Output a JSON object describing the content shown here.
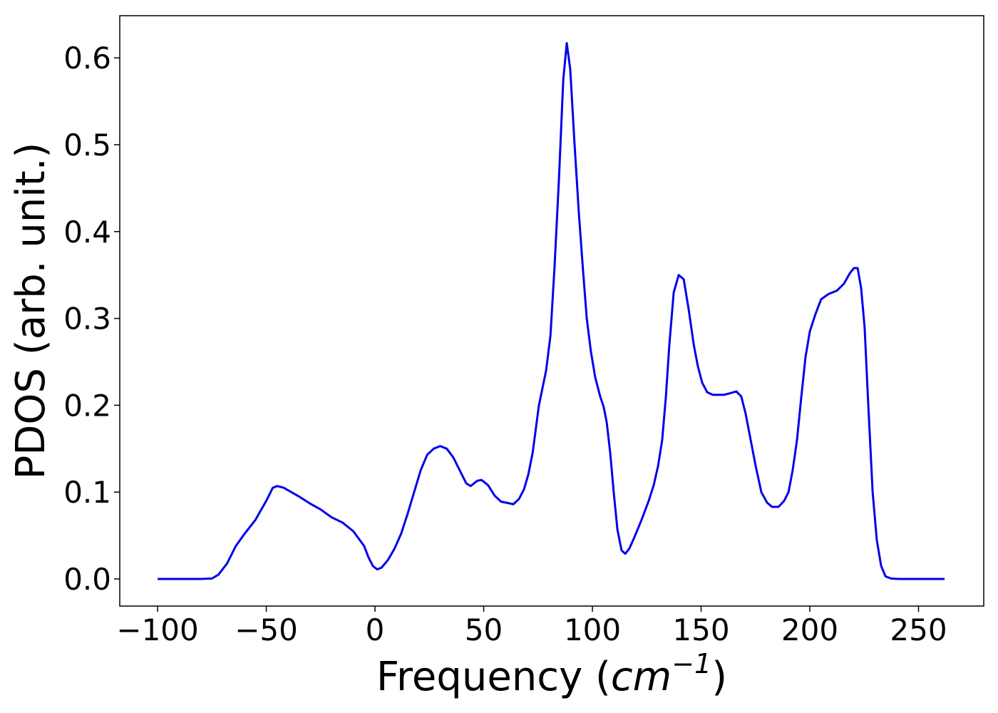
{
  "chart_data": {
    "type": "line",
    "x_label": {
      "text": "Frequency (",
      "unit": "cm",
      "exponent": "−1",
      "close": ")"
    },
    "y_label": "PDOS (arb. unit.)",
    "x": [
      -100,
      -80,
      -75,
      -72,
      -68,
      -64,
      -60,
      -55,
      -50,
      -47,
      -45,
      -42,
      -35,
      -30,
      -25,
      -20,
      -15,
      -10,
      -5,
      -3,
      -1,
      1,
      3,
      6,
      9,
      12,
      15,
      18,
      21,
      24,
      27,
      30,
      33,
      36,
      39,
      42,
      44,
      47,
      49,
      52,
      55,
      58,
      62,
      63.6,
      66.2,
      68.5,
      70.5,
      72.5,
      75.4,
      78.7,
      80.7,
      82.6,
      84.6,
      86.6,
      88.2,
      89.8,
      91.8,
      93.8,
      95.7,
      97.4,
      99.3,
      101.3,
      103.6,
      105.2,
      106.6,
      108.2,
      109.8,
      111.5,
      113.4,
      115.1,
      117,
      119.3,
      122.6,
      125.9,
      128.2,
      130.2,
      132.1,
      133.8,
      135.4,
      137.4,
      139.7,
      142,
      144.3,
      146.6,
      148.5,
      150.5,
      152.8,
      155.4,
      160.3,
      163.6,
      166.2,
      168.5,
      170.5,
      172.8,
      175.1,
      177.7,
      180.3,
      182.6,
      185.6,
      188.2,
      190.2,
      192.1,
      194.1,
      196.1,
      198,
      200,
      202.6,
      205.2,
      208.5,
      212.5,
      215.7,
      218.4,
      220.3,
      222,
      223.6,
      225.2,
      226.9,
      228.9,
      230.8,
      232.8,
      234.8,
      237.4,
      240.7,
      262
    ],
    "series": [
      {
        "name": "PDOS",
        "color": "#0000ee",
        "values": [
          0,
          0,
          0.0005,
          0.005,
          0.018,
          0.038,
          0.052,
          0.068,
          0.09,
          0.105,
          0.107,
          0.105,
          0.095,
          0.087,
          0.08,
          0.071,
          0.065,
          0.055,
          0.038,
          0.025,
          0.015,
          0.011,
          0.013,
          0.022,
          0.035,
          0.052,
          0.075,
          0.1,
          0.125,
          0.143,
          0.15,
          0.153,
          0.15,
          0.14,
          0.125,
          0.11,
          0.107,
          0.113,
          0.114,
          0.108,
          0.096,
          0.089,
          0.087,
          0.086,
          0.092,
          0.103,
          0.12,
          0.145,
          0.2,
          0.24,
          0.28,
          0.36,
          0.46,
          0.575,
          0.617,
          0.587,
          0.5,
          0.42,
          0.355,
          0.3,
          0.262,
          0.232,
          0.21,
          0.198,
          0.18,
          0.145,
          0.1,
          0.057,
          0.033,
          0.029,
          0.035,
          0.048,
          0.068,
          0.09,
          0.108,
          0.13,
          0.16,
          0.21,
          0.27,
          0.33,
          0.35,
          0.345,
          0.31,
          0.27,
          0.245,
          0.226,
          0.215,
          0.212,
          0.212,
          0.214,
          0.216,
          0.21,
          0.19,
          0.16,
          0.13,
          0.1,
          0.088,
          0.083,
          0.083,
          0.09,
          0.1,
          0.125,
          0.16,
          0.21,
          0.255,
          0.285,
          0.305,
          0.322,
          0.328,
          0.332,
          0.34,
          0.352,
          0.358,
          0.358,
          0.335,
          0.29,
          0.2,
          0.1,
          0.045,
          0.015,
          0.003,
          0.0005,
          0,
          0
        ]
      }
    ],
    "xlim": [
      -117.4,
      280
    ],
    "ylim": [
      -0.0312,
      0.6486
    ],
    "xticks": [
      {
        "value": -100,
        "label": "−100"
      },
      {
        "value": -50,
        "label": "−50"
      },
      0,
      50,
      100,
      150,
      200,
      250
    ],
    "yticks": [
      {
        "value": 0,
        "label": "0.0"
      },
      0.1,
      0.2,
      0.3,
      0.4,
      0.5,
      0.6
    ],
    "grid": false
  }
}
